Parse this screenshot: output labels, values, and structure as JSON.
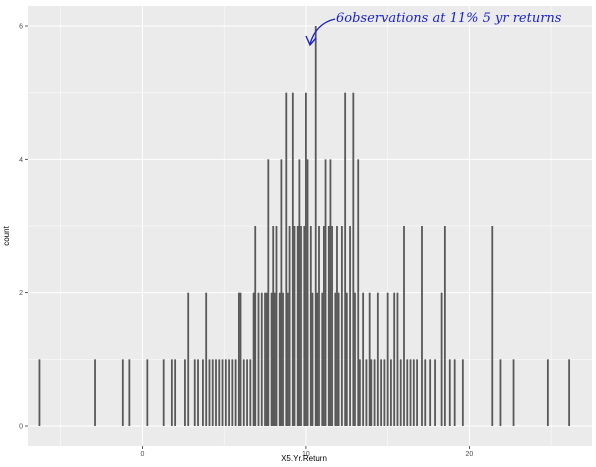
{
  "chart_data": {
    "type": "histogram",
    "title": "",
    "xlabel": "X5.Yr.Return",
    "ylabel": "count",
    "xlim": [
      -7,
      27.5
    ],
    "ylim": [
      -0.3,
      6.3
    ],
    "x_ticks": [
      0,
      10,
      20
    ],
    "y_ticks": [
      0,
      2,
      4,
      6
    ],
    "grid": true,
    "panel_background": "#ebebeb",
    "bar_color": "#595959",
    "bins": [
      {
        "x": -6.3,
        "count": 1
      },
      {
        "x": -2.9,
        "count": 1
      },
      {
        "x": -1.2,
        "count": 1
      },
      {
        "x": -0.8,
        "count": 1
      },
      {
        "x": 0.3,
        "count": 1
      },
      {
        "x": 1.3,
        "count": 1
      },
      {
        "x": 1.8,
        "count": 1
      },
      {
        "x": 2.0,
        "count": 1
      },
      {
        "x": 2.6,
        "count": 1
      },
      {
        "x": 2.8,
        "count": 2
      },
      {
        "x": 3.2,
        "count": 1
      },
      {
        "x": 3.4,
        "count": 1
      },
      {
        "x": 3.7,
        "count": 1
      },
      {
        "x": 3.9,
        "count": 2
      },
      {
        "x": 4.1,
        "count": 1
      },
      {
        "x": 4.3,
        "count": 1
      },
      {
        "x": 4.5,
        "count": 1
      },
      {
        "x": 4.7,
        "count": 1
      },
      {
        "x": 4.9,
        "count": 1
      },
      {
        "x": 5.1,
        "count": 1
      },
      {
        "x": 5.3,
        "count": 1
      },
      {
        "x": 5.5,
        "count": 1
      },
      {
        "x": 5.7,
        "count": 1
      },
      {
        "x": 5.9,
        "count": 2
      },
      {
        "x": 6.0,
        "count": 2
      },
      {
        "x": 6.2,
        "count": 1
      },
      {
        "x": 6.4,
        "count": 1
      },
      {
        "x": 6.6,
        "count": 1
      },
      {
        "x": 6.8,
        "count": 2
      },
      {
        "x": 6.9,
        "count": 3
      },
      {
        "x": 7.1,
        "count": 2
      },
      {
        "x": 7.3,
        "count": 2
      },
      {
        "x": 7.5,
        "count": 2
      },
      {
        "x": 7.6,
        "count": 2
      },
      {
        "x": 7.7,
        "count": 4
      },
      {
        "x": 7.9,
        "count": 2
      },
      {
        "x": 8.0,
        "count": 3
      },
      {
        "x": 8.1,
        "count": 2
      },
      {
        "x": 8.2,
        "count": 3
      },
      {
        "x": 8.4,
        "count": 2
      },
      {
        "x": 8.5,
        "count": 4
      },
      {
        "x": 8.6,
        "count": 2
      },
      {
        "x": 8.8,
        "count": 5
      },
      {
        "x": 8.9,
        "count": 2
      },
      {
        "x": 9.0,
        "count": 3
      },
      {
        "x": 9.2,
        "count": 5
      },
      {
        "x": 9.3,
        "count": 3
      },
      {
        "x": 9.5,
        "count": 3
      },
      {
        "x": 9.6,
        "count": 4
      },
      {
        "x": 9.7,
        "count": 3
      },
      {
        "x": 9.9,
        "count": 3
      },
      {
        "x": 10.0,
        "count": 5
      },
      {
        "x": 10.1,
        "count": 4
      },
      {
        "x": 10.3,
        "count": 3
      },
      {
        "x": 10.4,
        "count": 2
      },
      {
        "x": 10.6,
        "count": 6
      },
      {
        "x": 10.7,
        "count": 2
      },
      {
        "x": 10.8,
        "count": 3
      },
      {
        "x": 11.0,
        "count": 2
      },
      {
        "x": 11.1,
        "count": 3
      },
      {
        "x": 11.2,
        "count": 4
      },
      {
        "x": 11.4,
        "count": 3
      },
      {
        "x": 11.5,
        "count": 4
      },
      {
        "x": 11.6,
        "count": 3
      },
      {
        "x": 11.8,
        "count": 2
      },
      {
        "x": 11.9,
        "count": 3
      },
      {
        "x": 12.0,
        "count": 2
      },
      {
        "x": 12.2,
        "count": 3
      },
      {
        "x": 12.4,
        "count": 5
      },
      {
        "x": 12.5,
        "count": 2
      },
      {
        "x": 12.7,
        "count": 3
      },
      {
        "x": 12.9,
        "count": 5
      },
      {
        "x": 13.0,
        "count": 2
      },
      {
        "x": 13.2,
        "count": 4
      },
      {
        "x": 13.3,
        "count": 1
      },
      {
        "x": 13.5,
        "count": 2
      },
      {
        "x": 13.7,
        "count": 1
      },
      {
        "x": 13.9,
        "count": 2
      },
      {
        "x": 14.0,
        "count": 1
      },
      {
        "x": 14.2,
        "count": 1
      },
      {
        "x": 14.4,
        "count": 2
      },
      {
        "x": 14.6,
        "count": 1
      },
      {
        "x": 14.8,
        "count": 1
      },
      {
        "x": 15.0,
        "count": 2
      },
      {
        "x": 15.2,
        "count": 1
      },
      {
        "x": 15.4,
        "count": 2
      },
      {
        "x": 15.6,
        "count": 2
      },
      {
        "x": 15.8,
        "count": 1
      },
      {
        "x": 16.0,
        "count": 3
      },
      {
        "x": 16.2,
        "count": 1
      },
      {
        "x": 16.4,
        "count": 1
      },
      {
        "x": 16.6,
        "count": 1
      },
      {
        "x": 16.8,
        "count": 1
      },
      {
        "x": 17.1,
        "count": 3
      },
      {
        "x": 17.3,
        "count": 1
      },
      {
        "x": 17.6,
        "count": 1
      },
      {
        "x": 17.9,
        "count": 1
      },
      {
        "x": 18.3,
        "count": 2
      },
      {
        "x": 18.5,
        "count": 3
      },
      {
        "x": 18.8,
        "count": 1
      },
      {
        "x": 19.1,
        "count": 1
      },
      {
        "x": 19.6,
        "count": 1
      },
      {
        "x": 21.4,
        "count": 3
      },
      {
        "x": 21.9,
        "count": 1
      },
      {
        "x": 22.7,
        "count": 1
      },
      {
        "x": 24.8,
        "count": 1
      },
      {
        "x": 26.1,
        "count": 1
      }
    ],
    "annotations": [
      {
        "text": "6observations at 11% 5 yr returns",
        "points_to": {
          "x": 10.6,
          "count": 6
        }
      }
    ]
  },
  "colors": {
    "panel": "#ebebeb",
    "grid": "#ffffff",
    "bar": "#595959",
    "annotation": "#1a23c9"
  }
}
